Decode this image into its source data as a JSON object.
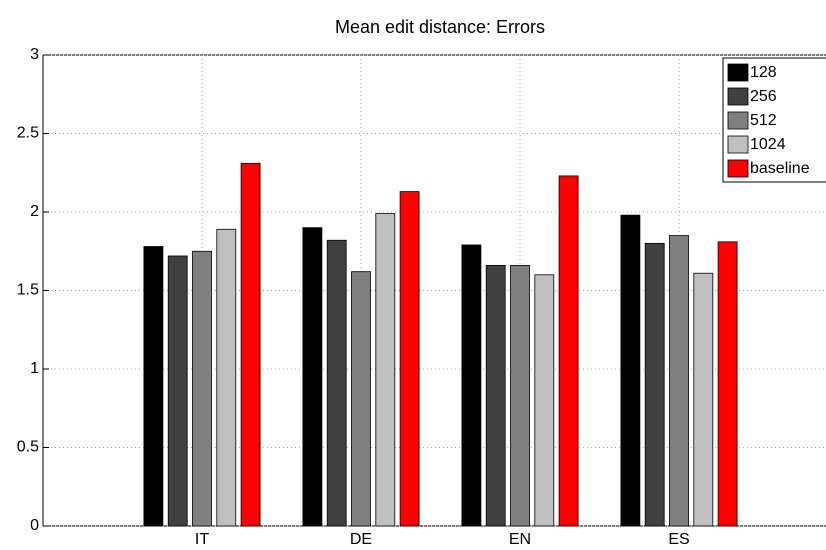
{
  "chart_data": {
    "type": "bar",
    "title": "Mean edit distance: Errors",
    "categories": [
      "IT",
      "DE",
      "EN",
      "ES"
    ],
    "series": [
      {
        "name": "128",
        "color": "#000000",
        "values": [
          1.78,
          1.9,
          1.79,
          1.98
        ]
      },
      {
        "name": "256",
        "color": "#404040",
        "values": [
          1.72,
          1.82,
          1.66,
          1.8
        ]
      },
      {
        "name": "512",
        "color": "#808080",
        "values": [
          1.75,
          1.62,
          1.66,
          1.85
        ]
      },
      {
        "name": "1024",
        "color": "#c0c0c0",
        "values": [
          1.89,
          1.99,
          1.6,
          1.61
        ]
      },
      {
        "name": "baseline",
        "color": "#ff0000",
        "values": [
          2.31,
          2.13,
          2.23,
          1.81
        ]
      }
    ],
    "ylim": [
      0,
      3
    ],
    "yticks": [
      0,
      0.5,
      1,
      1.5,
      2,
      2.5,
      3
    ],
    "grid": true,
    "legend": "top-right"
  }
}
